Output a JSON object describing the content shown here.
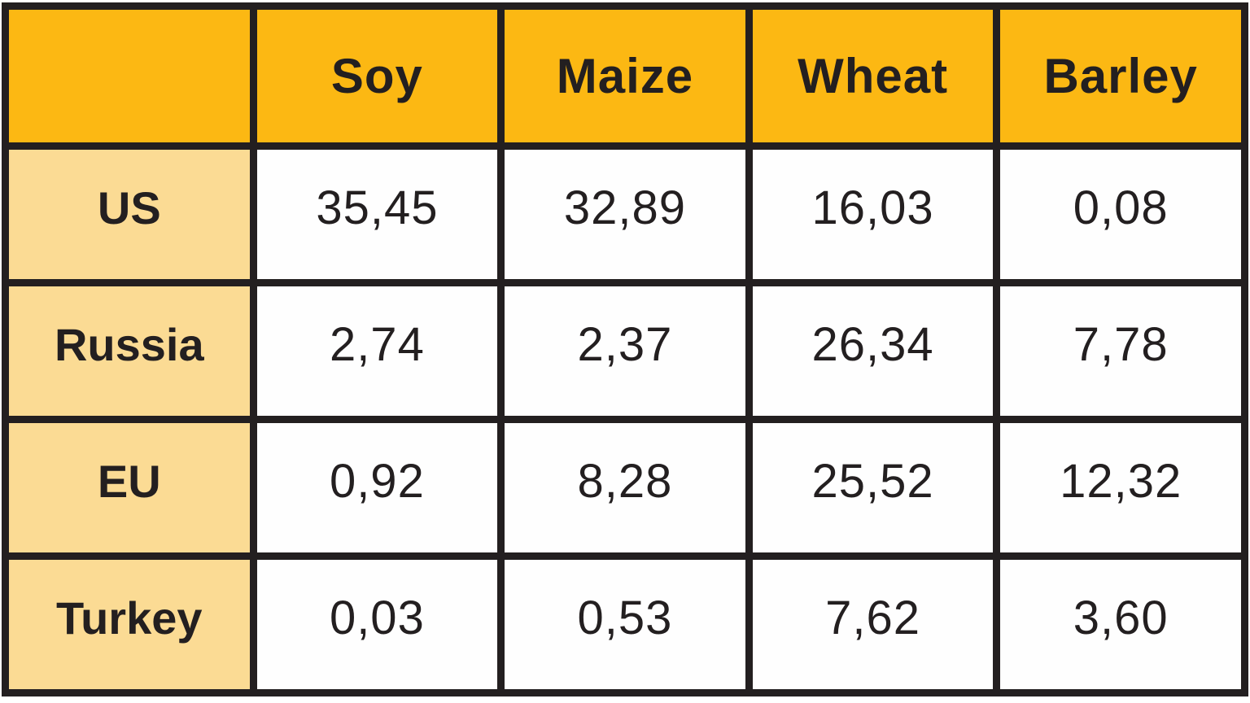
{
  "chart_data": {
    "type": "table",
    "title": "",
    "corner_label": "",
    "columns": [
      "Soy",
      "Maize",
      "Wheat",
      "Barley"
    ],
    "rows": [
      {
        "label": "US",
        "values": [
          "35,45",
          "32,89",
          "16,03",
          "0,08"
        ]
      },
      {
        "label": "Russia",
        "values": [
          "2,74",
          "2,37",
          "26,34",
          "7,78"
        ]
      },
      {
        "label": "EU",
        "values": [
          "0,92",
          "8,28",
          "25,52",
          "12,32"
        ]
      },
      {
        "label": "Turkey",
        "values": [
          "0,03",
          "0,53",
          "7,62",
          "3,60"
        ]
      }
    ],
    "decimal_separator": ",",
    "layout": "countries as rows, crops as columns, grid on"
  },
  "ui": {
    "colors": {
      "header_bg": "#FCB813",
      "row_header_bg": "#FBDB94",
      "cell_bg": "#FEFEFE",
      "border": "#231F20",
      "text": "#231F20"
    }
  }
}
